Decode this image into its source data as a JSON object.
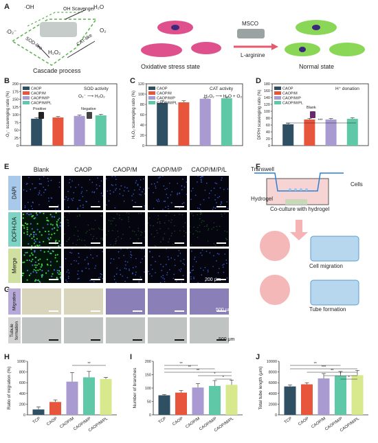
{
  "panels": {
    "A": "A",
    "B": "B",
    "C": "C",
    "D": "D",
    "E": "E",
    "F": "F",
    "G": "G",
    "H": "H",
    "I": "I",
    "J": "J"
  },
  "panelA": {
    "oh": "·OH",
    "oh_scavenger": "OH Scavenger",
    "h2o": "H₂O",
    "o2minus": "·O₂⁻",
    "sod_like": "SOD-like",
    "h2o2": "H₂O₂",
    "cat_like": "CAT-like",
    "o2": "O₂",
    "cascade": "Cascade process",
    "mscо": "MSCO",
    "larginine": "L-arginine",
    "oxidative": "Oxidative stress state",
    "normal": "Normal state"
  },
  "legend_groups": [
    "CAOP",
    "CAOP/M",
    "CAOP/M/P",
    "CAOP/M/PL"
  ],
  "colors": {
    "g1": "#2f4f63",
    "g2": "#e8553d",
    "g3": "#a99bd1",
    "g4": "#5fc8a6",
    "teal": "#64c2a7"
  },
  "panelB": {
    "ylabel": "·O₂⁻ scavenging ratio (%)",
    "title": "SOD activity",
    "equation": "O₂⁻ ⟶ H₂O₂",
    "positive": "Positive",
    "negative": "Negative",
    "yticks": [
      "0",
      "25",
      "50",
      "75",
      "100",
      "125",
      "150",
      "175",
      "200"
    ]
  },
  "panelC": {
    "ylabel": "H₂O₂ scavenging ratio (%)",
    "title": "CAT activity",
    "equation": "H₂O₂ ⟶ H₂O + O₂",
    "yticks": [
      "0",
      "20",
      "40",
      "60",
      "80",
      "100",
      "120"
    ]
  },
  "panelD": {
    "ylabel": "DPPH scavenging ratio (%)",
    "title": "H⁺ donation",
    "blank": "Blank",
    "sig": "***",
    "yticks": [
      "0",
      "20",
      "40",
      "60",
      "80",
      "100",
      "120",
      "140",
      "160",
      "180"
    ]
  },
  "panelE": {
    "cols": [
      "Blank",
      "CAOP",
      "CAOP/M",
      "CAOP/M/P",
      "CAOP/M/P/L"
    ],
    "rows": [
      "DAPI",
      "DCFH-DA",
      "Merge"
    ],
    "scale": "200 μm"
  },
  "panelF": {
    "transwell": "Transwell",
    "cells": "Cells",
    "hydrogel": "Hydrogel",
    "coculture": "Co-culture with hydrogel",
    "migration": "Cell migration",
    "tube": "Tube formation"
  },
  "panelG": {
    "rows": [
      "Migration",
      "Tubule formation"
    ],
    "scale1": "500 μm",
    "scale2": "500 μm"
  },
  "chart_data": [
    {
      "id": "B",
      "type": "bar",
      "categories": [
        "CAOP",
        "CAOP/M",
        "CAOP/M/P",
        "CAOP/M/PL"
      ],
      "values": [
        87,
        91,
        96,
        98
      ],
      "errors": [
        3,
        3,
        3,
        3
      ],
      "ylabel": "·O₂⁻ scavenging ratio (%)",
      "ylim": [
        0,
        200
      ]
    },
    {
      "id": "C",
      "type": "bar",
      "categories": [
        "CAOP",
        "CAOP/M",
        "CAOP/M/P",
        "CAOP/M/PL"
      ],
      "values": [
        83,
        84,
        91,
        92
      ],
      "errors": [
        4,
        3,
        2,
        2
      ],
      "ylabel": "H₂O₂ scavenging ratio (%)",
      "ylim": [
        0,
        120
      ]
    },
    {
      "id": "D",
      "type": "bar",
      "categories": [
        "CAOP",
        "CAOP/M",
        "CAOP/M/P",
        "CAOP/M/PL"
      ],
      "values": [
        62,
        76,
        76,
        78
      ],
      "errors": [
        3,
        3,
        3,
        3
      ],
      "ylabel": "DPPH scavenging ratio (%)",
      "ylim": [
        0,
        180
      ]
    },
    {
      "id": "H",
      "type": "bar",
      "categories": [
        "TCP",
        "CAOP",
        "CAOP/M",
        "CAOP/M/P",
        "CAOP/M/PL"
      ],
      "values": [
        100,
        240,
        620,
        700,
        670
      ],
      "errors": [
        50,
        40,
        170,
        110,
        30
      ],
      "ylabel": "Ratio of migration (%)",
      "ylim": [
        0,
        1000
      ],
      "yticks": [
        0,
        200,
        400,
        600,
        800,
        1000
      ],
      "sig": [
        {
          "from": 2,
          "to": 4,
          "label": "**"
        }
      ]
    },
    {
      "id": "I",
      "type": "bar",
      "categories": [
        "TCP",
        "CAOP",
        "CAOP/M",
        "CAOP/M/P",
        "CAOP/M/PL"
      ],
      "values": [
        73,
        83,
        102,
        108,
        112
      ],
      "errors": [
        3,
        8,
        15,
        20,
        18
      ],
      "ylabel": "Number of branches",
      "ylim": [
        0,
        200
      ],
      "yticks": [
        0,
        50,
        100,
        150,
        200
      ],
      "sig": [
        {
          "from": 0,
          "to": 2,
          "label": "**"
        },
        {
          "from": 0,
          "to": 3,
          "label": "**"
        },
        {
          "from": 0,
          "to": 4,
          "label": "**"
        },
        {
          "from": 2,
          "to": 4,
          "label": "*"
        },
        {
          "from": 3,
          "to": 4,
          "label": "*"
        }
      ]
    },
    {
      "id": "J",
      "type": "bar",
      "categories": [
        "TCP",
        "CAOP",
        "CAOP/M",
        "CAOP/M/P",
        "CAOP/M/PL"
      ],
      "values": [
        5300,
        5700,
        6800,
        7300,
        7400
      ],
      "errors": [
        300,
        300,
        900,
        800,
        900
      ],
      "ylabel": "Total tube length (μm)",
      "ylim": [
        0,
        10000
      ],
      "yticks": [
        0,
        2000,
        4000,
        6000,
        8000,
        10000
      ],
      "sig": [
        {
          "from": 0,
          "to": 3,
          "label": "**"
        },
        {
          "from": 0,
          "to": 4,
          "label": "***"
        },
        {
          "from": 1,
          "to": 4,
          "label": "**"
        },
        {
          "from": 2,
          "to": 4,
          "label": "*"
        },
        {
          "from": 3,
          "to": 4,
          "label": "*"
        }
      ]
    }
  ]
}
